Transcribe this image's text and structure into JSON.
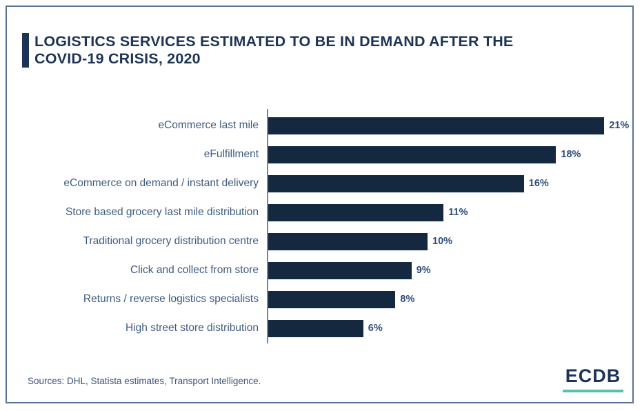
{
  "header": {
    "title": "LOGISTICS SERVICES ESTIMATED TO BE IN DEMAND AFTER THE COVID-19 CRISIS, 2020"
  },
  "chart_data": {
    "type": "bar",
    "orientation": "horizontal",
    "title": "LOGISTICS SERVICES ESTIMATED TO BE IN DEMAND AFTER THE COVID-19 CRISIS, 2020",
    "categories": [
      "eCommerce last mile",
      "eFulfillment",
      "eCommerce on demand / instant delivery",
      "Store based grocery last mile distribution",
      "Traditional grocery distribution centre",
      "Click and collect from store",
      "Returns / reverse logistics specialists",
      "High street store distribution"
    ],
    "values": [
      21,
      18,
      16,
      11,
      10,
      9,
      8,
      6
    ],
    "value_labels": [
      "21%",
      "18%",
      "16%",
      "11%",
      "10%",
      "9%",
      "8%",
      "6%"
    ],
    "xlabel": "",
    "ylabel": "",
    "xlim": [
      0,
      22
    ],
    "grid": false,
    "legend": false,
    "bar_color": "#142940"
  },
  "footer": {
    "sources": "Sources: DHL, Statista estimates, Transport Intelligence.",
    "logo_text": "ECDB"
  },
  "colors": {
    "bar": "#142940",
    "title": "#1d3456",
    "category_label": "#3e5a80",
    "value_label": "#2f4e7c",
    "axis_line": "#72839a",
    "panel_border": "#5b7392",
    "logo_underline": "#57c2a8"
  }
}
